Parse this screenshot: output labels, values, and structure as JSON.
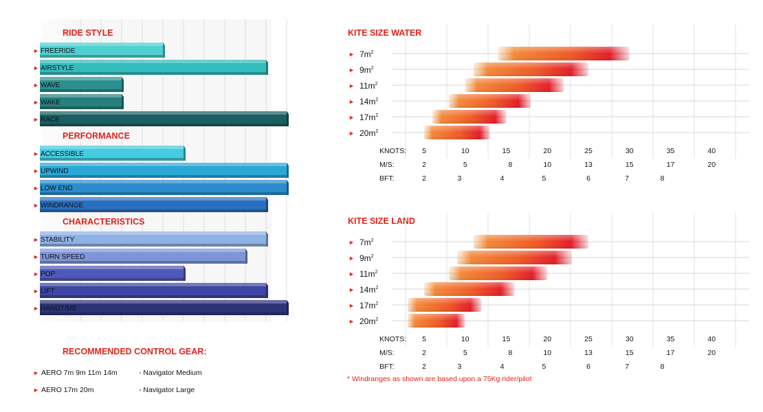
{
  "colors": {
    "accent": "#e2231a"
  },
  "left_chart": {
    "type": "bar",
    "scale_max": 9,
    "sections": [
      {
        "title": "RIDE STYLE",
        "items": [
          {
            "label": "FREERIDE",
            "value": 5,
            "color": "#4fd0d0"
          },
          {
            "label": "AIRSTYLE",
            "value": 10,
            "color": "#33bcbc"
          },
          {
            "label": "WAVE",
            "value": 3,
            "color": "#2b8f8f"
          },
          {
            "label": "WAKE",
            "value": 3,
            "color": "#277f7f"
          },
          {
            "label": "RACE",
            "value": 11,
            "color": "#1c5e62"
          }
        ]
      },
      {
        "title": "PERFORMANCE",
        "items": [
          {
            "label": "ACCESSIBLE",
            "value": 6,
            "color": "#44cbe0"
          },
          {
            "label": "UPWIND",
            "value": 11,
            "color": "#2aa8d6"
          },
          {
            "label": "LOW END",
            "value": 11,
            "color": "#2b8ccc"
          },
          {
            "label": "WINDRANGE",
            "value": 10,
            "color": "#2b6fbf"
          }
        ]
      },
      {
        "title": "CHARACTERISTICS",
        "items": [
          {
            "label": "STABILITY",
            "value": 10,
            "color": "#8fb1e4"
          },
          {
            "label": "TURN SPEED",
            "value": 9,
            "color": "#7f95d8"
          },
          {
            "label": "POP",
            "value": 6,
            "color": "#4f5ab8"
          },
          {
            "label": "LIFT",
            "value": 10,
            "color": "#3d46a2"
          },
          {
            "label": "HANGTIME",
            "value": 11,
            "color": "#2c3478"
          }
        ]
      }
    ]
  },
  "control_gear": {
    "title": "RECOMMENDED CONTROL GEAR:",
    "rows": [
      {
        "kites": "AERO  7m 9m 11m 14m",
        "bar": "-  Navigator Medium"
      },
      {
        "kites": "AERO 17m 20m",
        "bar": "-  Navigator Large"
      }
    ]
  },
  "chart_data": [
    {
      "type": "bar",
      "title": "KITE SIZE WATER",
      "categories": [
        "7m",
        "9m",
        "11m",
        "14m",
        "17m",
        "20m"
      ],
      "category_superscript": "2",
      "x_unit": "knots",
      "ranges_knots": [
        [
          14,
          30
        ],
        [
          11,
          25
        ],
        [
          10,
          22
        ],
        [
          8,
          18
        ],
        [
          6,
          15
        ],
        [
          5,
          13
        ]
      ],
      "axes": {
        "knots": {
          "label": "KNOTS:",
          "ticks": [
            "5",
            "10",
            "15",
            "20",
            "25",
            "30",
            "35",
            "40"
          ],
          "values": [
            5,
            10,
            15,
            20,
            25,
            30,
            35,
            40
          ]
        },
        "ms": {
          "label": "M/S:",
          "ticks": [
            "2",
            "5",
            "8",
            "10",
            "13",
            "15",
            "17",
            "20"
          ],
          "values": [
            5,
            10,
            15.5,
            20,
            25,
            30,
            35,
            40
          ]
        },
        "bft": {
          "label": "BFT:",
          "ticks": [
            "2",
            "3",
            "4",
            "5",
            "6",
            "7",
            "8"
          ],
          "values": [
            5,
            9.3,
            14.5,
            19.6,
            25,
            29.7,
            34
          ]
        }
      },
      "xlim": [
        5,
        40
      ]
    },
    {
      "type": "bar",
      "title": "KITE SIZE LAND",
      "categories": [
        "7m",
        "9m",
        "11m",
        "14m",
        "17m",
        "20m"
      ],
      "category_superscript": "2",
      "x_unit": "knots",
      "ranges_knots": [
        [
          11,
          25
        ],
        [
          9,
          23
        ],
        [
          8,
          20
        ],
        [
          5,
          16
        ],
        [
          3,
          12
        ],
        [
          3,
          10
        ]
      ],
      "axes": {
        "knots": {
          "label": "KNOTS:",
          "ticks": [
            "5",
            "10",
            "15",
            "20",
            "25",
            "30",
            "35",
            "40"
          ],
          "values": [
            5,
            10,
            15,
            20,
            25,
            30,
            35,
            40
          ]
        },
        "ms": {
          "label": "M/S:",
          "ticks": [
            "2",
            "5",
            "8",
            "10",
            "13",
            "15",
            "17",
            "20"
          ],
          "values": [
            5,
            10,
            15.5,
            20,
            25,
            30,
            35,
            40
          ]
        },
        "bft": {
          "label": "BFT:",
          "ticks": [
            "2",
            "3",
            "4",
            "5",
            "6",
            "7",
            "8"
          ],
          "values": [
            5,
            9.3,
            14.5,
            19.6,
            25,
            29.7,
            34
          ]
        }
      },
      "xlim": [
        5,
        40
      ]
    }
  ],
  "footnote": "* Windranges as shown are based upon a 75Kg rider/pilot"
}
